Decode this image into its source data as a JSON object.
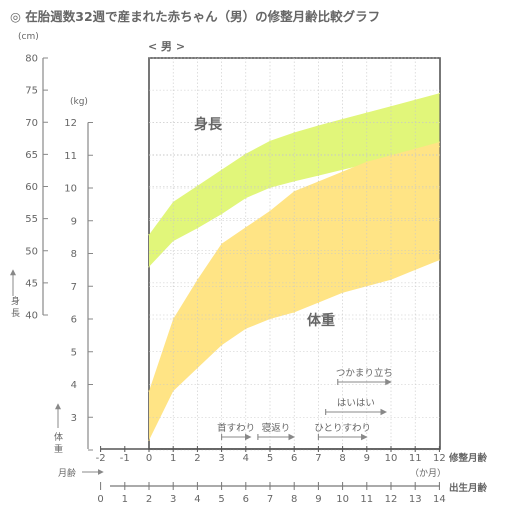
{
  "chart_data": {
    "type": "area",
    "title": "◎ 在胎週数32週で産まれた赤ちゃん（男）の修整月齢比較グラフ",
    "subtitle": "< 男 >",
    "x_axis": {
      "label": "修整月齢",
      "unit": "（か月）",
      "ticks": [
        "-2",
        "-1",
        "0",
        "1",
        "2",
        "3",
        "4",
        "5",
        "6",
        "7",
        "8",
        "9",
        "10",
        "11",
        "12"
      ],
      "range": [
        -2,
        12
      ],
      "grid": true
    },
    "secondary_x_axis": {
      "label": "出生月齢",
      "arrow_label": "月齢",
      "ticks": [
        "0",
        "1",
        "2",
        "3",
        "4",
        "5",
        "6",
        "7",
        "8",
        "9",
        "10",
        "11",
        "12",
        "13",
        "14"
      ]
    },
    "height_axis": {
      "unit": "(cm)",
      "label": "身長",
      "ticks": [
        "40",
        "45",
        "50",
        "55",
        "60",
        "65",
        "70",
        "75",
        "80"
      ],
      "range": [
        40,
        80
      ]
    },
    "weight_axis": {
      "unit": "(kg)",
      "label": "体重",
      "ticks": [
        "2",
        "3",
        "4",
        "5",
        "6",
        "7",
        "8",
        "9",
        "10",
        "11",
        "12"
      ],
      "range": [
        2,
        12
      ]
    },
    "series": [
      {
        "name": "身長",
        "axis": "height",
        "color": "#e1f67a",
        "x": [
          0,
          1,
          2,
          3,
          4,
          5,
          6,
          7,
          8,
          9,
          10,
          11,
          12
        ],
        "lower": [
          47.5,
          51.5,
          53.5,
          55.7,
          58.2,
          59.8,
          60.8,
          61.7,
          62.6,
          63.5,
          64.3,
          65.2,
          66.2
        ],
        "upper": [
          52.5,
          57.6,
          60.1,
          62.6,
          65.1,
          67.1,
          68.4,
          69.5,
          70.5,
          71.5,
          72.5,
          73.5,
          74.5
        ]
      },
      {
        "name": "体重",
        "axis": "weight",
        "color": "#ffe485",
        "x": [
          0,
          1,
          2,
          3,
          4,
          5,
          6,
          7,
          8,
          9,
          10,
          11,
          12
        ],
        "lower": [
          2.3,
          3.8,
          4.5,
          5.2,
          5.7,
          6.0,
          6.2,
          6.5,
          6.8,
          7.0,
          7.2,
          7.5,
          7.8
        ],
        "upper": [
          3.8,
          6.0,
          7.2,
          8.3,
          8.8,
          9.3,
          9.9,
          10.2,
          10.5,
          10.8,
          11.0,
          11.2,
          11.4
        ]
      }
    ],
    "milestones": [
      {
        "label": "首すわり",
        "start": 3,
        "end": 4.2
      },
      {
        "label": "寝返り",
        "start": 4.5,
        "end": 6
      },
      {
        "label": "ひとりすわり",
        "start": 7,
        "end": 9
      },
      {
        "label": "はいはい",
        "start": 7.3,
        "end": 9.8
      },
      {
        "label": "つかまり立ち",
        "start": 7.8,
        "end": 10
      }
    ],
    "grid": true,
    "legend": "none"
  }
}
